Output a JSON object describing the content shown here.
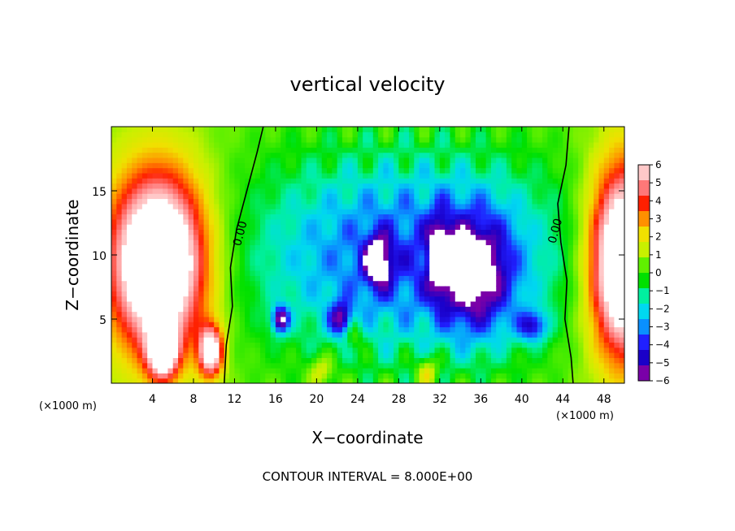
{
  "chart_data": {
    "type": "heatmap",
    "title": "vertical velocity",
    "xlabel": "X−coordinate",
    "ylabel": "Z−coordinate",
    "x_unit": "(×1000 m)",
    "x_unit_right": "(×1000 m)",
    "xlim": [
      0,
      50
    ],
    "ylim": [
      0,
      20
    ],
    "x_ticks": [
      4,
      8,
      12,
      16,
      20,
      24,
      28,
      32,
      36,
      40,
      44,
      48
    ],
    "x_tick_labels": [
      "4",
      "8",
      "12",
      "16",
      "20",
      "24",
      "28",
      "32",
      "36",
      "40",
      "44",
      "48"
    ],
    "y_ticks": [
      5,
      10,
      15
    ],
    "y_tick_labels": [
      "5",
      "10",
      "15"
    ],
    "colorbar": {
      "levels": [
        6,
        5,
        4,
        3,
        2,
        1,
        0,
        -1,
        -2,
        -3,
        -4,
        -5,
        -6
      ],
      "labels": [
        "6",
        "5",
        "4",
        "3",
        "2",
        "1",
        "0",
        "−1",
        "−2",
        "−3",
        "−4",
        "−5",
        "−6"
      ],
      "range": [
        -6,
        6
      ],
      "colors": [
        "#7a00a8",
        "#1a00c8",
        "#2020ff",
        "#0a90ff",
        "#00d8f0",
        "#00f0a0",
        "#00e000",
        "#60f000",
        "#c8f000",
        "#f0e000",
        "#ff9000",
        "#ff2000",
        "#ff7878",
        "#ffc8c8"
      ]
    },
    "contour_interval_text": "CONTOUR INTERVAL = 8.000E+00",
    "contour_labels": [
      {
        "text": "0.00",
        "x": 12.9,
        "z": 11.6
      },
      {
        "text": "0.00",
        "x": 43.6,
        "z": 11.8
      }
    ],
    "features": [
      {
        "kind": "updraft",
        "x": 4.6,
        "z": 9.5,
        "rx": 4.8,
        "rz": 7.0,
        "amp": 10
      },
      {
        "kind": "updraft",
        "x": 5.0,
        "z": 2.5,
        "rx": 1.5,
        "rz": 2.2,
        "amp": 6
      },
      {
        "kind": "updraft",
        "x": 9.7,
        "z": 2.5,
        "rx": 1.2,
        "rz": 2.0,
        "amp": 7
      },
      {
        "kind": "updraft",
        "x": 50.0,
        "z": 9.5,
        "rx": 3.5,
        "rz": 7.5,
        "amp": 10
      },
      {
        "kind": "downdraft",
        "x": 29.0,
        "z": 10.0,
        "rx": 16.0,
        "rz": 8.0,
        "amp": -4.5
      },
      {
        "kind": "downdraft",
        "x": 26.0,
        "z": 9.5,
        "rx": 1.3,
        "rz": 2.0,
        "amp": -5
      },
      {
        "kind": "downdraft",
        "x": 35.5,
        "z": 8.5,
        "rx": 3.5,
        "rz": 4.5,
        "amp": -5
      },
      {
        "kind": "downdraft",
        "x": 32.0,
        "z": 10.0,
        "rx": 1.0,
        "rz": 3.0,
        "amp": -4
      },
      {
        "kind": "downdraft",
        "x": 16.5,
        "z": 5.0,
        "rx": 0.8,
        "rz": 1.0,
        "amp": -6
      },
      {
        "kind": "downdraft",
        "x": 22.5,
        "z": 5.0,
        "rx": 1.2,
        "rz": 1.3,
        "amp": -5
      },
      {
        "kind": "downdraft",
        "x": 41.0,
        "z": 4.5,
        "rx": 1.5,
        "rz": 1.2,
        "amp": -4
      },
      {
        "kind": "updraft",
        "x": 23.5,
        "z": 4.2,
        "rx": 1.0,
        "rz": 1.5,
        "amp": 2.5
      },
      {
        "kind": "updraft",
        "x": 30.8,
        "z": 1.0,
        "rx": 1.0,
        "rz": 1.2,
        "amp": 2.5
      },
      {
        "kind": "updraft",
        "x": 20.5,
        "z": 1.0,
        "rx": 1.2,
        "rz": 1.2,
        "amp": 2.0
      }
    ]
  }
}
